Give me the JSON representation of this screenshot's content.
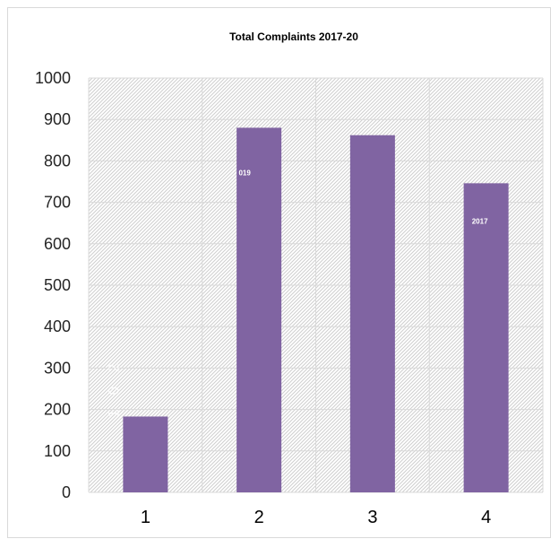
{
  "chart_data": {
    "type": "bar",
    "title": "Total Complaints 2017-20",
    "categories": [
      "1",
      "2",
      "3",
      "4"
    ],
    "values": [
      183,
      880,
      862,
      746
    ],
    "ylim": [
      0,
      1000
    ],
    "y_ticks": [
      0,
      100,
      200,
      300,
      400,
      500,
      600,
      700,
      800,
      900,
      1000
    ],
    "xlabel": "",
    "ylabel": "",
    "grid": true,
    "legend": "none",
    "bar_labels": [
      "",
      "019",
      "",
      "2017"
    ],
    "stray_bar_glyphs": [
      "2",
      "0",
      "1"
    ],
    "colors": {
      "bar": "#8064a2",
      "grid": "#d9d9d9",
      "hatch": "#cfcfcf",
      "frame": "#d9d9d9"
    }
  }
}
